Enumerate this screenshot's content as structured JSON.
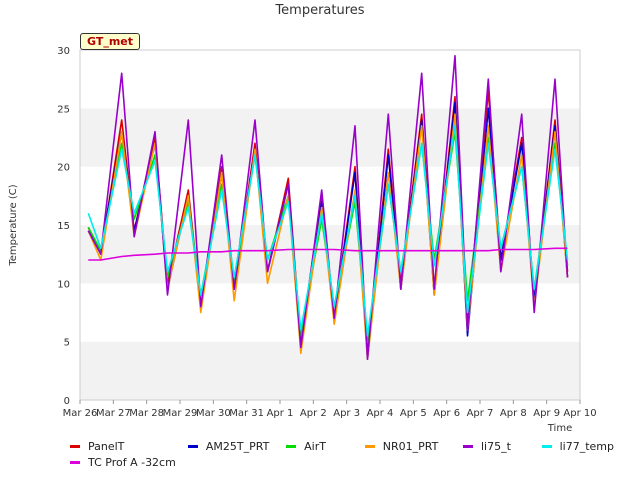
{
  "chart_data": {
    "type": "line",
    "title": "Temperatures",
    "xlabel": "Time",
    "ylabel": "Temperature (C)",
    "ylim": [
      0,
      30
    ],
    "yticks": [
      0,
      5,
      10,
      15,
      20,
      25,
      30
    ],
    "xlim_days": [
      0,
      15
    ],
    "xticks": [
      "Mar 26",
      "Mar 27",
      "Mar 28",
      "Mar 29",
      "Mar 30",
      "Mar 31",
      "Apr 1",
      "Apr 2",
      "Apr 3",
      "Apr 4",
      "Apr 5",
      "Apr 6",
      "Apr 7",
      "Apr 8",
      "Apr 9",
      "Apr 10"
    ],
    "grid": "horizontal bands",
    "legend_position": "bottom",
    "badge": "GT_met",
    "x_dates": [
      "Mar 26 6:00",
      "Mar 26 15:00",
      "Mar 27 6:00",
      "Mar 27 15:00",
      "Mar 28 6:00",
      "Mar 28 15:00",
      "Mar 29 6:00",
      "Mar 29 15:00",
      "Mar 30 6:00",
      "Mar 30 15:00",
      "Mar 31 6:00",
      "Mar 31 15:00",
      "Apr 1 6:00",
      "Apr 1 15:00",
      "Apr 2 6:00",
      "Apr 2 15:00",
      "Apr 3 6:00",
      "Apr 3 15:00",
      "Apr 4 6:00",
      "Apr 4 15:00",
      "Apr 5 6:00",
      "Apr 5 15:00",
      "Apr 6 6:00",
      "Apr 6 15:00",
      "Apr 7 6:00",
      "Apr 7 15:00",
      "Apr 8 6:00",
      "Apr 8 15:00",
      "Apr 9 6:00",
      "Apr 9 15:00"
    ],
    "x_days": [
      0.25,
      0.625,
      1.25,
      1.625,
      2.25,
      2.625,
      3.25,
      3.625,
      4.25,
      4.625,
      5.25,
      5.625,
      6.25,
      6.625,
      7.25,
      7.625,
      8.25,
      8.625,
      9.25,
      9.625,
      10.25,
      10.625,
      11.25,
      11.625,
      12.25,
      12.625,
      13.25,
      13.625,
      14.25,
      14.625
    ],
    "series": [
      {
        "name": "PanelT",
        "color": "#dd0000",
        "values": [
          14.8,
          12.5,
          24.0,
          14.5,
          22.5,
          10.0,
          18.0,
          8.0,
          20.0,
          9.5,
          22.0,
          11.0,
          19.0,
          5.0,
          17.5,
          7.0,
          20.0,
          4.0,
          21.5,
          10.0,
          24.5,
          9.5,
          26.0,
          6.5,
          26.5,
          12.0,
          22.5,
          8.5,
          24.0,
          11.0
        ]
      },
      {
        "name": "AM25T_PRT",
        "color": "#0000cc",
        "values": [
          14.5,
          12.8,
          23.0,
          14.5,
          22.0,
          9.5,
          17.5,
          8.0,
          19.5,
          9.5,
          21.5,
          11.0,
          18.5,
          4.5,
          17.0,
          7.0,
          19.5,
          3.5,
          21.0,
          9.5,
          24.0,
          9.0,
          25.5,
          5.5,
          25.0,
          12.0,
          22.0,
          8.5,
          23.5,
          10.5
        ]
      },
      {
        "name": "AirT",
        "color": "#00dd00",
        "values": [
          14.8,
          12.8,
          22.0,
          15.5,
          21.0,
          10.5,
          17.0,
          9.0,
          18.5,
          10.0,
          21.0,
          12.0,
          17.5,
          5.5,
          15.5,
          8.0,
          17.0,
          5.0,
          18.5,
          11.0,
          22.0,
          12.0,
          23.0,
          8.5,
          22.5,
          13.0,
          20.0,
          9.5,
          22.0,
          11.5
        ]
      },
      {
        "name": "NR01_PRT",
        "color": "#ff9900",
        "values": [
          14.5,
          12.0,
          23.0,
          14.0,
          22.0,
          9.5,
          17.5,
          7.5,
          19.5,
          8.5,
          21.5,
          10.0,
          17.5,
          4.0,
          16.5,
          6.5,
          18.0,
          3.5,
          19.5,
          9.5,
          23.5,
          9.0,
          24.5,
          6.0,
          23.5,
          11.0,
          21.0,
          8.0,
          23.0,
          10.5
        ]
      },
      {
        "name": "li75_t",
        "color": "#9900cc",
        "values": [
          14.5,
          12.5,
          28.0,
          14.0,
          23.0,
          9.0,
          24.0,
          8.0,
          21.0,
          9.5,
          24.0,
          11.0,
          18.5,
          4.5,
          18.0,
          7.0,
          23.5,
          3.5,
          24.5,
          9.5,
          28.0,
          9.5,
          29.5,
          6.0,
          27.5,
          11.0,
          24.5,
          7.5,
          27.5,
          10.5
        ]
      },
      {
        "name": "li77_temp",
        "color": "#00eeee",
        "values": [
          16.0,
          13.0,
          21.5,
          16.0,
          20.5,
          11.0,
          16.5,
          9.0,
          18.0,
          10.5,
          21.0,
          12.0,
          17.0,
          6.0,
          16.0,
          8.0,
          17.5,
          5.5,
          18.5,
          11.0,
          22.0,
          11.5,
          23.5,
          7.5,
          22.0,
          13.0,
          20.0,
          9.5,
          21.5,
          12.0
        ]
      },
      {
        "name": "TC Prof A -32cm",
        "color": "#dd00dd",
        "values": [
          12.0,
          12.0,
          12.3,
          12.4,
          12.5,
          12.6,
          12.6,
          12.7,
          12.7,
          12.8,
          12.8,
          12.8,
          12.9,
          12.9,
          12.9,
          12.9,
          12.8,
          12.8,
          12.8,
          12.8,
          12.8,
          12.8,
          12.8,
          12.8,
          12.8,
          12.9,
          12.9,
          12.9,
          13.0,
          13.0
        ]
      }
    ]
  },
  "legend_rows": [
    [
      "PanelT",
      "AM25T_PRT",
      "AirT",
      "NR01_PRT",
      "li75_t",
      "li77_temp"
    ],
    [
      "TC Prof A -32cm"
    ]
  ]
}
